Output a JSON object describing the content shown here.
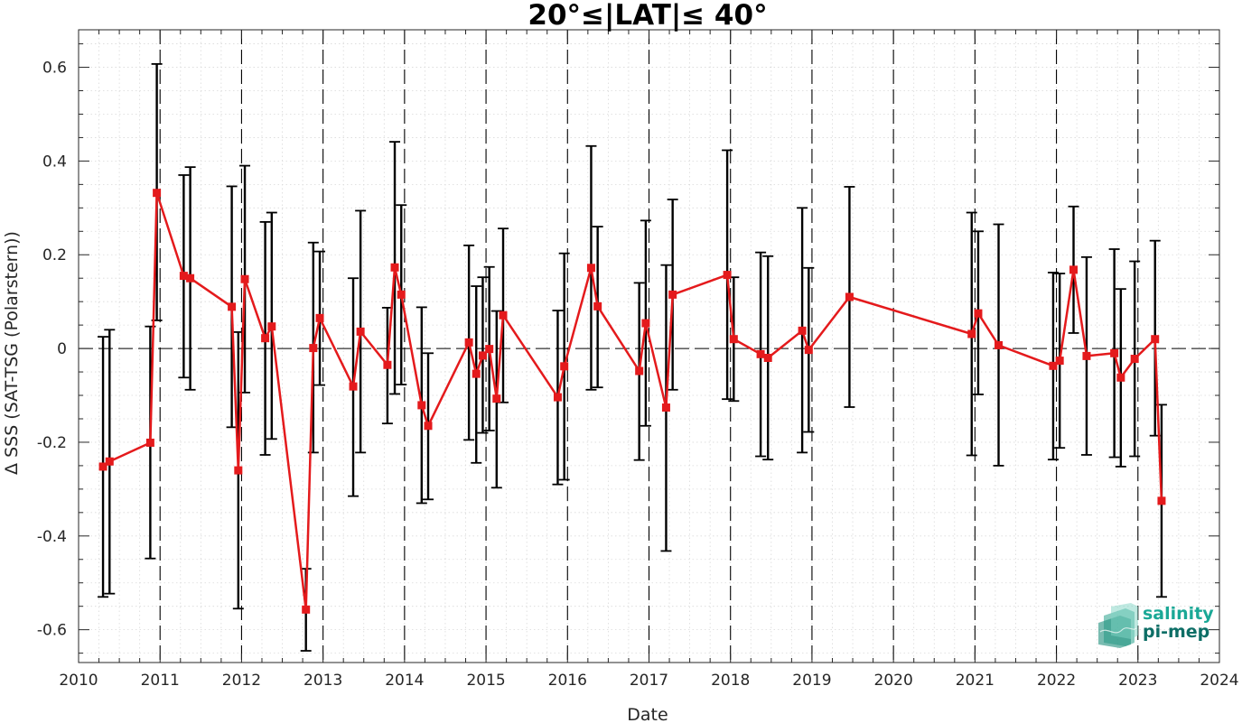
{
  "chart_data": {
    "type": "line",
    "title": "20°≤|LAT|≤ 40°",
    "xlabel": "Date",
    "ylabel": "Δ SSS (SAT-TSG (Polarstern))",
    "xlim": [
      2010,
      2024
    ],
    "ylim": [
      -0.67,
      0.68
    ],
    "x_ticks": [
      2010,
      2011,
      2012,
      2013,
      2014,
      2015,
      2016,
      2017,
      2018,
      2019,
      2020,
      2021,
      2022,
      2023,
      2024
    ],
    "x_tick_labels": [
      "2010",
      "2011",
      "2012",
      "2013",
      "2014",
      "2015",
      "2016",
      "2017",
      "2018",
      "2019",
      "2020",
      "2021",
      "2022",
      "2023",
      "2024"
    ],
    "y_ticks": [
      -0.6,
      -0.4,
      -0.2,
      0,
      0.2,
      0.4,
      0.6
    ],
    "y_tick_labels": [
      "-0.6",
      "-0.4",
      "-0.2",
      "0",
      "0.2",
      "0.4",
      "0.6"
    ],
    "grid": true,
    "year_boundaries": [
      2011,
      2012,
      2013,
      2014,
      2015,
      2016,
      2017,
      2018,
      2019,
      2020,
      2021,
      2022,
      2023
    ],
    "zero_line": 0,
    "series": [
      {
        "color": "#e41a1c",
        "errorbar_color": "#000000",
        "points": [
          {
            "x": 2010.3,
            "y": -0.252,
            "lo": -0.53,
            "hi": 0.025
          },
          {
            "x": 2010.38,
            "y": -0.241,
            "lo": -0.523,
            "hi": 0.04
          },
          {
            "x": 2010.88,
            "y": -0.201,
            "lo": -0.448,
            "hi": 0.047
          },
          {
            "x": 2010.96,
            "y": 0.332,
            "lo": 0.06,
            "hi": 0.607
          },
          {
            "x": 2011.29,
            "y": 0.155,
            "lo": -0.062,
            "hi": 0.37
          },
          {
            "x": 2011.37,
            "y": 0.15,
            "lo": -0.088,
            "hi": 0.387
          },
          {
            "x": 2011.88,
            "y": 0.089,
            "lo": -0.168,
            "hi": 0.346
          },
          {
            "x": 2011.96,
            "y": -0.26,
            "lo": -0.555,
            "hi": 0.035
          },
          {
            "x": 2012.04,
            "y": 0.148,
            "lo": -0.094,
            "hi": 0.39
          },
          {
            "x": 2012.29,
            "y": 0.022,
            "lo": -0.227,
            "hi": 0.27
          },
          {
            "x": 2012.37,
            "y": 0.047,
            "lo": -0.193,
            "hi": 0.29
          },
          {
            "x": 2012.79,
            "y": -0.557,
            "lo": -0.645,
            "hi": -0.47
          },
          {
            "x": 2012.88,
            "y": 0.001,
            "lo": -0.222,
            "hi": 0.226
          },
          {
            "x": 2012.96,
            "y": 0.065,
            "lo": -0.078,
            "hi": 0.207
          },
          {
            "x": 2013.37,
            "y": -0.081,
            "lo": -0.315,
            "hi": 0.15
          },
          {
            "x": 2013.46,
            "y": 0.036,
            "lo": -0.222,
            "hi": 0.294
          },
          {
            "x": 2013.79,
            "y": -0.035,
            "lo": -0.16,
            "hi": 0.087
          },
          {
            "x": 2013.88,
            "y": 0.173,
            "lo": -0.097,
            "hi": 0.441
          },
          {
            "x": 2013.96,
            "y": 0.115,
            "lo": -0.077,
            "hi": 0.306
          },
          {
            "x": 2014.21,
            "y": -0.121,
            "lo": -0.33,
            "hi": 0.088
          },
          {
            "x": 2014.29,
            "y": -0.165,
            "lo": -0.322,
            "hi": -0.01
          },
          {
            "x": 2014.79,
            "y": 0.013,
            "lo": -0.195,
            "hi": 0.22
          },
          {
            "x": 2014.88,
            "y": -0.054,
            "lo": -0.244,
            "hi": 0.133
          },
          {
            "x": 2014.96,
            "y": -0.015,
            "lo": -0.18,
            "hi": 0.152
          },
          {
            "x": 2015.04,
            "y": -0.001,
            "lo": -0.175,
            "hi": 0.174
          },
          {
            "x": 2015.13,
            "y": -0.107,
            "lo": -0.297,
            "hi": 0.08
          },
          {
            "x": 2015.21,
            "y": 0.071,
            "lo": -0.115,
            "hi": 0.256
          },
          {
            "x": 2015.88,
            "y": -0.104,
            "lo": -0.29,
            "hi": 0.081
          },
          {
            "x": 2015.96,
            "y": -0.038,
            "lo": -0.28,
            "hi": 0.203
          },
          {
            "x": 2016.29,
            "y": 0.172,
            "lo": -0.088,
            "hi": 0.432
          },
          {
            "x": 2016.37,
            "y": 0.09,
            "lo": -0.083,
            "hi": 0.26
          },
          {
            "x": 2016.88,
            "y": -0.048,
            "lo": -0.238,
            "hi": 0.14
          },
          {
            "x": 2016.96,
            "y": 0.054,
            "lo": -0.165,
            "hi": 0.273
          },
          {
            "x": 2017.21,
            "y": -0.126,
            "lo": -0.432,
            "hi": 0.178
          },
          {
            "x": 2017.29,
            "y": 0.115,
            "lo": -0.088,
            "hi": 0.318
          },
          {
            "x": 2017.96,
            "y": 0.157,
            "lo": -0.108,
            "hi": 0.423
          },
          {
            "x": 2018.04,
            "y": 0.02,
            "lo": -0.112,
            "hi": 0.152
          },
          {
            "x": 2018.37,
            "y": -0.012,
            "lo": -0.23,
            "hi": 0.205
          },
          {
            "x": 2018.46,
            "y": -0.02,
            "lo": -0.237,
            "hi": 0.197
          },
          {
            "x": 2018.88,
            "y": 0.038,
            "lo": -0.222,
            "hi": 0.3
          },
          {
            "x": 2018.96,
            "y": -0.003,
            "lo": -0.178,
            "hi": 0.172
          },
          {
            "x": 2019.46,
            "y": 0.11,
            "lo": -0.125,
            "hi": 0.345
          },
          {
            "x": 2020.96,
            "y": 0.031,
            "lo": -0.228,
            "hi": 0.29
          },
          {
            "x": 2021.04,
            "y": 0.075,
            "lo": -0.098,
            "hi": 0.25
          },
          {
            "x": 2021.29,
            "y": 0.007,
            "lo": -0.25,
            "hi": 0.265
          },
          {
            "x": 2021.96,
            "y": -0.037,
            "lo": -0.237,
            "hi": 0.162
          },
          {
            "x": 2022.04,
            "y": -0.026,
            "lo": -0.212,
            "hi": 0.16
          },
          {
            "x": 2022.21,
            "y": 0.168,
            "lo": 0.033,
            "hi": 0.303
          },
          {
            "x": 2022.37,
            "y": -0.016,
            "lo": -0.227,
            "hi": 0.195
          },
          {
            "x": 2022.71,
            "y": -0.01,
            "lo": -0.232,
            "hi": 0.212
          },
          {
            "x": 2022.79,
            "y": -0.062,
            "lo": -0.252,
            "hi": 0.127
          },
          {
            "x": 2022.96,
            "y": -0.022,
            "lo": -0.23,
            "hi": 0.186
          },
          {
            "x": 2023.21,
            "y": 0.02,
            "lo": -0.186,
            "hi": 0.23
          },
          {
            "x": 2023.29,
            "y": -0.325,
            "lo": -0.53,
            "hi": -0.12
          }
        ]
      }
    ]
  },
  "logo": {
    "line1": "salinity",
    "line2": "pi-mep",
    "color1": "#1aa896",
    "color2": "#0d6e66"
  }
}
